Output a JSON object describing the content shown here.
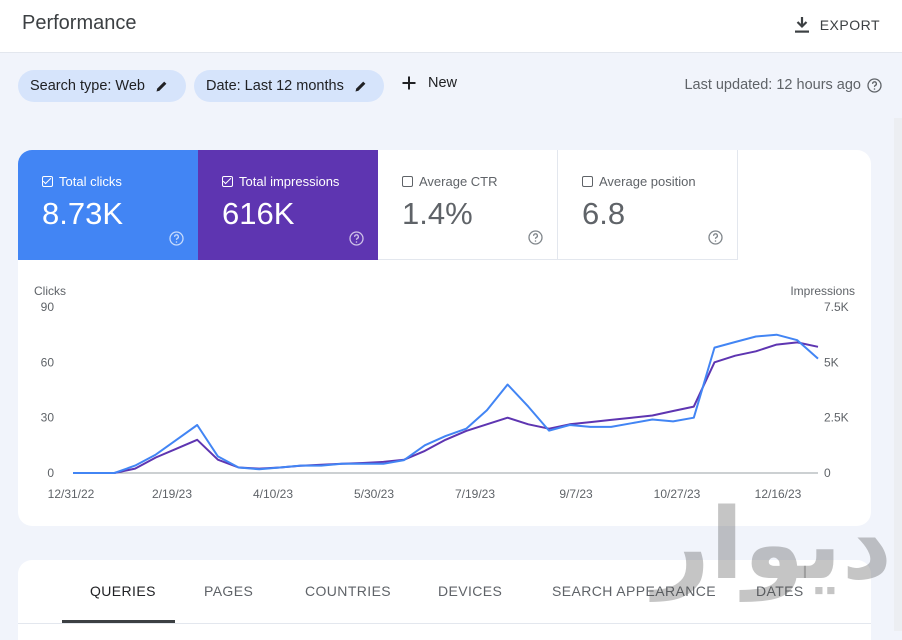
{
  "header": {
    "title": "Performance",
    "export_label": "EXPORT"
  },
  "filters": {
    "chips": [
      {
        "label": "Search type: Web"
      },
      {
        "label": "Date: Last 12 months"
      }
    ],
    "new_label": "New",
    "last_updated": "Last updated: 12 hours ago"
  },
  "metrics": [
    {
      "label": "Total clicks",
      "value": "8.73K",
      "selected": true,
      "color": "#4285f4"
    },
    {
      "label": "Total impressions",
      "value": "616K",
      "selected": true,
      "color": "#5e35b1"
    },
    {
      "label": "Average CTR",
      "value": "1.4%",
      "selected": false
    },
    {
      "label": "Average position",
      "value": "6.8",
      "selected": false
    }
  ],
  "chart_data": {
    "type": "line",
    "ylabel_left": "Clicks",
    "ylabel_right": "Impressions",
    "yticks_left": [
      "90",
      "60",
      "30",
      "0"
    ],
    "yticks_right": [
      "7.5K",
      "5K",
      "2.5K",
      "0"
    ],
    "ylim_left": [
      0,
      90
    ],
    "ylim_right": [
      0,
      7500
    ],
    "xtick_labels": [
      "12/31/22",
      "2/19/23",
      "4/10/23",
      "5/30/23",
      "7/19/23",
      "9/7/23",
      "10/27/23",
      "12/16/23"
    ],
    "x_points": [
      "12/31/22",
      "1/10/23",
      "1/20/23",
      "1/30/23",
      "2/9/23",
      "2/19/23",
      "3/1/23",
      "3/11/23",
      "3/21/23",
      "3/31/23",
      "4/10/23",
      "4/20/23",
      "4/30/23",
      "5/10/23",
      "5/20/23",
      "5/30/23",
      "6/9/23",
      "6/19/23",
      "6/29/23",
      "7/9/23",
      "7/19/23",
      "7/29/23",
      "8/8/23",
      "8/18/23",
      "8/28/23",
      "9/7/23",
      "9/17/23",
      "9/27/23",
      "10/7/23",
      "10/17/23",
      "10/27/23",
      "11/6/23",
      "11/16/23",
      "11/26/23",
      "12/6/23",
      "12/16/23",
      "12/26/23"
    ],
    "series": [
      {
        "name": "Clicks",
        "axis": "left",
        "color": "#4285f4",
        "values": [
          0,
          0,
          0,
          4,
          10,
          18,
          26,
          9,
          3,
          2,
          3,
          4,
          4,
          5,
          5,
          5,
          7,
          15,
          20,
          24,
          34,
          48,
          36,
          23,
          26,
          25,
          25,
          27,
          29,
          28,
          30,
          68,
          71,
          74,
          75,
          72,
          62
        ]
      },
      {
        "name": "Impressions",
        "axis": "right",
        "color": "#5e35b1",
        "values": [
          0,
          0,
          0,
          200,
          700,
          1100,
          1500,
          600,
          250,
          200,
          250,
          330,
          370,
          420,
          450,
          500,
          600,
          1000,
          1500,
          1900,
          2200,
          2500,
          2200,
          2000,
          2200,
          2300,
          2400,
          2500,
          2600,
          2800,
          3000,
          5000,
          5300,
          5500,
          5800,
          5900,
          5700
        ]
      }
    ]
  },
  "tabs": [
    "QUERIES",
    "PAGES",
    "COUNTRIES",
    "DEVICES",
    "SEARCH APPEARANCE",
    "DATES"
  ],
  "active_tab": "QUERIES",
  "watermark": "دیوار"
}
